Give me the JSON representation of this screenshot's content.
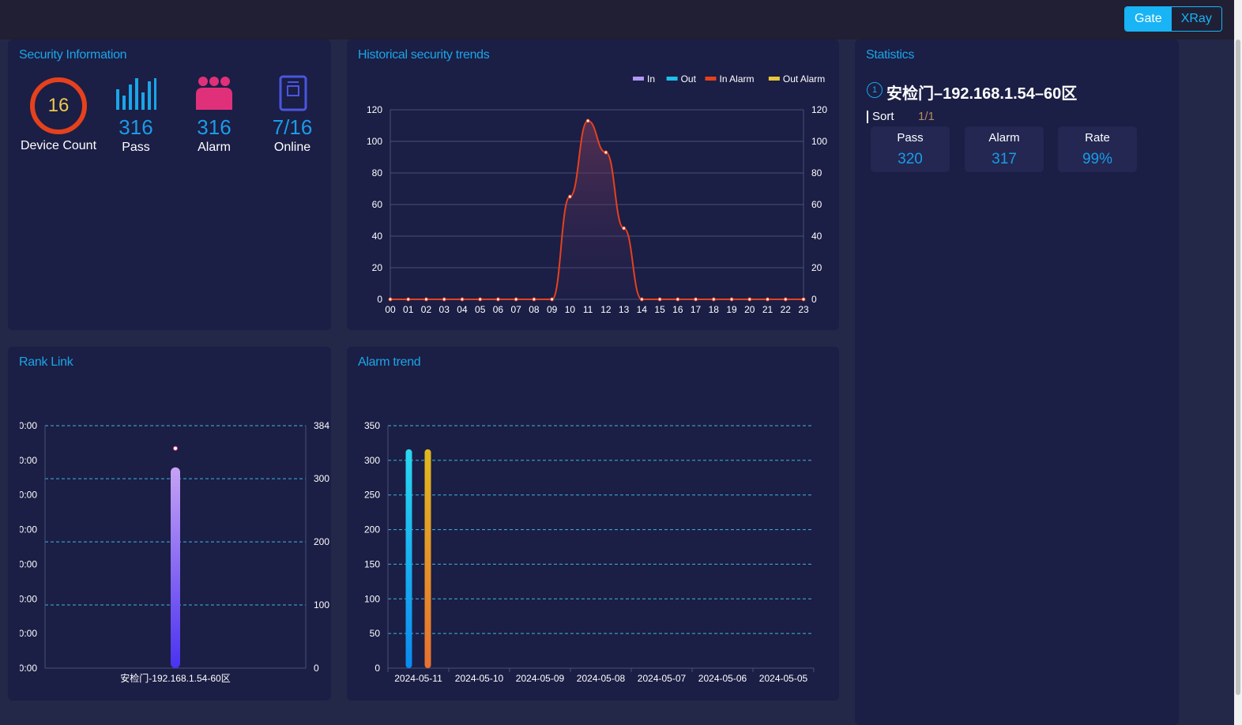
{
  "header": {
    "toggle": [
      {
        "label": "Gate",
        "active": true
      },
      {
        "label": "XRay",
        "active": false
      }
    ]
  },
  "security": {
    "title": "Security Information",
    "device_count": "16",
    "device_label": "Device Count",
    "pass": "316",
    "pass_label": "Pass",
    "alarm": "316",
    "alarm_label": "Alarm",
    "online": "7/16",
    "online_label": "Online"
  },
  "statistics": {
    "title": "Statistics",
    "index": "1",
    "device_name": "安检门–192.168.1.54–60区",
    "sort_label": "Sort",
    "sort_value": "1/1",
    "cards": [
      {
        "label": "Pass",
        "value": "320"
      },
      {
        "label": "Alarm",
        "value": "317"
      },
      {
        "label": "Rate",
        "value": "99%"
      }
    ]
  },
  "colors": {
    "accent": "#1aa6e8",
    "in": "#b296f0",
    "out": "#1ec0e8",
    "in_alarm": "#e5411d",
    "out_alarm": "#e8c53a"
  },
  "chart_data": [
    {
      "type": "line",
      "title": "Historical security trends",
      "legend": [
        "In",
        "Out",
        "In Alarm",
        "Out Alarm"
      ],
      "legend_position": "top-right",
      "categories": [
        "00",
        "01",
        "02",
        "03",
        "04",
        "05",
        "06",
        "07",
        "08",
        "09",
        "10",
        "11",
        "12",
        "13",
        "14",
        "15",
        "16",
        "17",
        "18",
        "19",
        "20",
        "21",
        "22",
        "23"
      ],
      "series": [
        {
          "name": "In Alarm",
          "values": [
            0,
            0,
            0,
            0,
            0,
            0,
            0,
            0,
            0,
            0,
            65,
            113,
            93,
            45,
            0,
            0,
            0,
            0,
            0,
            0,
            0,
            0,
            0,
            0
          ]
        }
      ],
      "ylim": [
        0,
        120
      ],
      "yticks": [
        "0",
        "20",
        "40",
        "60",
        "80",
        "100",
        "120"
      ],
      "grid": true
    },
    {
      "type": "bar",
      "title": "Rank Link",
      "categories": [
        "安检门-192.168.1.54-60区"
      ],
      "values": [
        318
      ],
      "marker": [
        348
      ],
      "ylim": [
        0,
        384
      ],
      "right_ticks": [
        "0",
        "100",
        "200",
        "300",
        "384"
      ],
      "left_ticks": [
        "0:00",
        "0:00",
        "0:00",
        "0:00",
        "0:00",
        "0:00",
        "0:00",
        "0:00"
      ],
      "grid": true
    },
    {
      "type": "bar",
      "title": "Alarm trend",
      "categories": [
        "2024-05-11",
        "2024-05-10",
        "2024-05-09",
        "2024-05-08",
        "2024-05-07",
        "2024-05-06",
        "2024-05-05"
      ],
      "series": [
        {
          "values": [
            316,
            0,
            0,
            0,
            0,
            0,
            0
          ]
        },
        {
          "values": [
            316,
            0,
            0,
            0,
            0,
            0,
            0
          ]
        }
      ],
      "ylim": [
        0,
        350
      ],
      "yticks": [
        "0",
        "50",
        "100",
        "150",
        "200",
        "250",
        "300",
        "350"
      ],
      "grid": true
    }
  ]
}
